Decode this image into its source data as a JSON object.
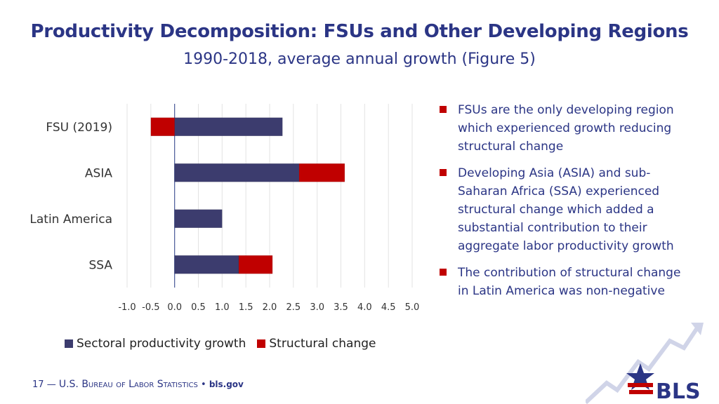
{
  "header": {
    "title": "Productivity Decomposition: FSUs and Other Developing Regions",
    "subtitle": "1990-2018, average annual growth (Figure 5)"
  },
  "chart_data": {
    "type": "bar",
    "orientation": "horizontal",
    "stacked": true,
    "categories": [
      "FSU (2019)",
      "ASIA",
      "Latin America",
      "SSA"
    ],
    "series": [
      {
        "name": "Sectoral productivity growth",
        "color": "#3c3c6e",
        "values": [
          2.27,
          2.62,
          1.0,
          1.35
        ]
      },
      {
        "name": "Structural change",
        "color": "#c00000",
        "values": [
          -0.5,
          0.96,
          0.0,
          0.71
        ]
      }
    ],
    "xlim": [
      -1.0,
      5.0
    ],
    "xticks": [
      "-1.0",
      "-0.5",
      "0.0",
      "0.5",
      "1.0",
      "1.5",
      "2.0",
      "2.5",
      "3.0",
      "3.5",
      "4.0",
      "4.5",
      "5.0"
    ],
    "grid": true,
    "legend": "bottom"
  },
  "bullets": [
    "FSUs are the only developing region which experienced growth reducing structural change",
    "Developing Asia (ASIA) and sub-Saharan Africa (SSA) experienced structural change which added a substantial contribution to their aggregate labor productivity growth",
    "The contribution of structural change in Latin America was non-negative"
  ],
  "footer": {
    "page_number": "17",
    "dash": "—",
    "org": "U.S. Bureau of Labor Statistics",
    "sep": "•",
    "website": "bls.gov"
  },
  "logo": {
    "text": "BLS",
    "color_blue": "#2b3585",
    "color_red": "#c00000"
  }
}
